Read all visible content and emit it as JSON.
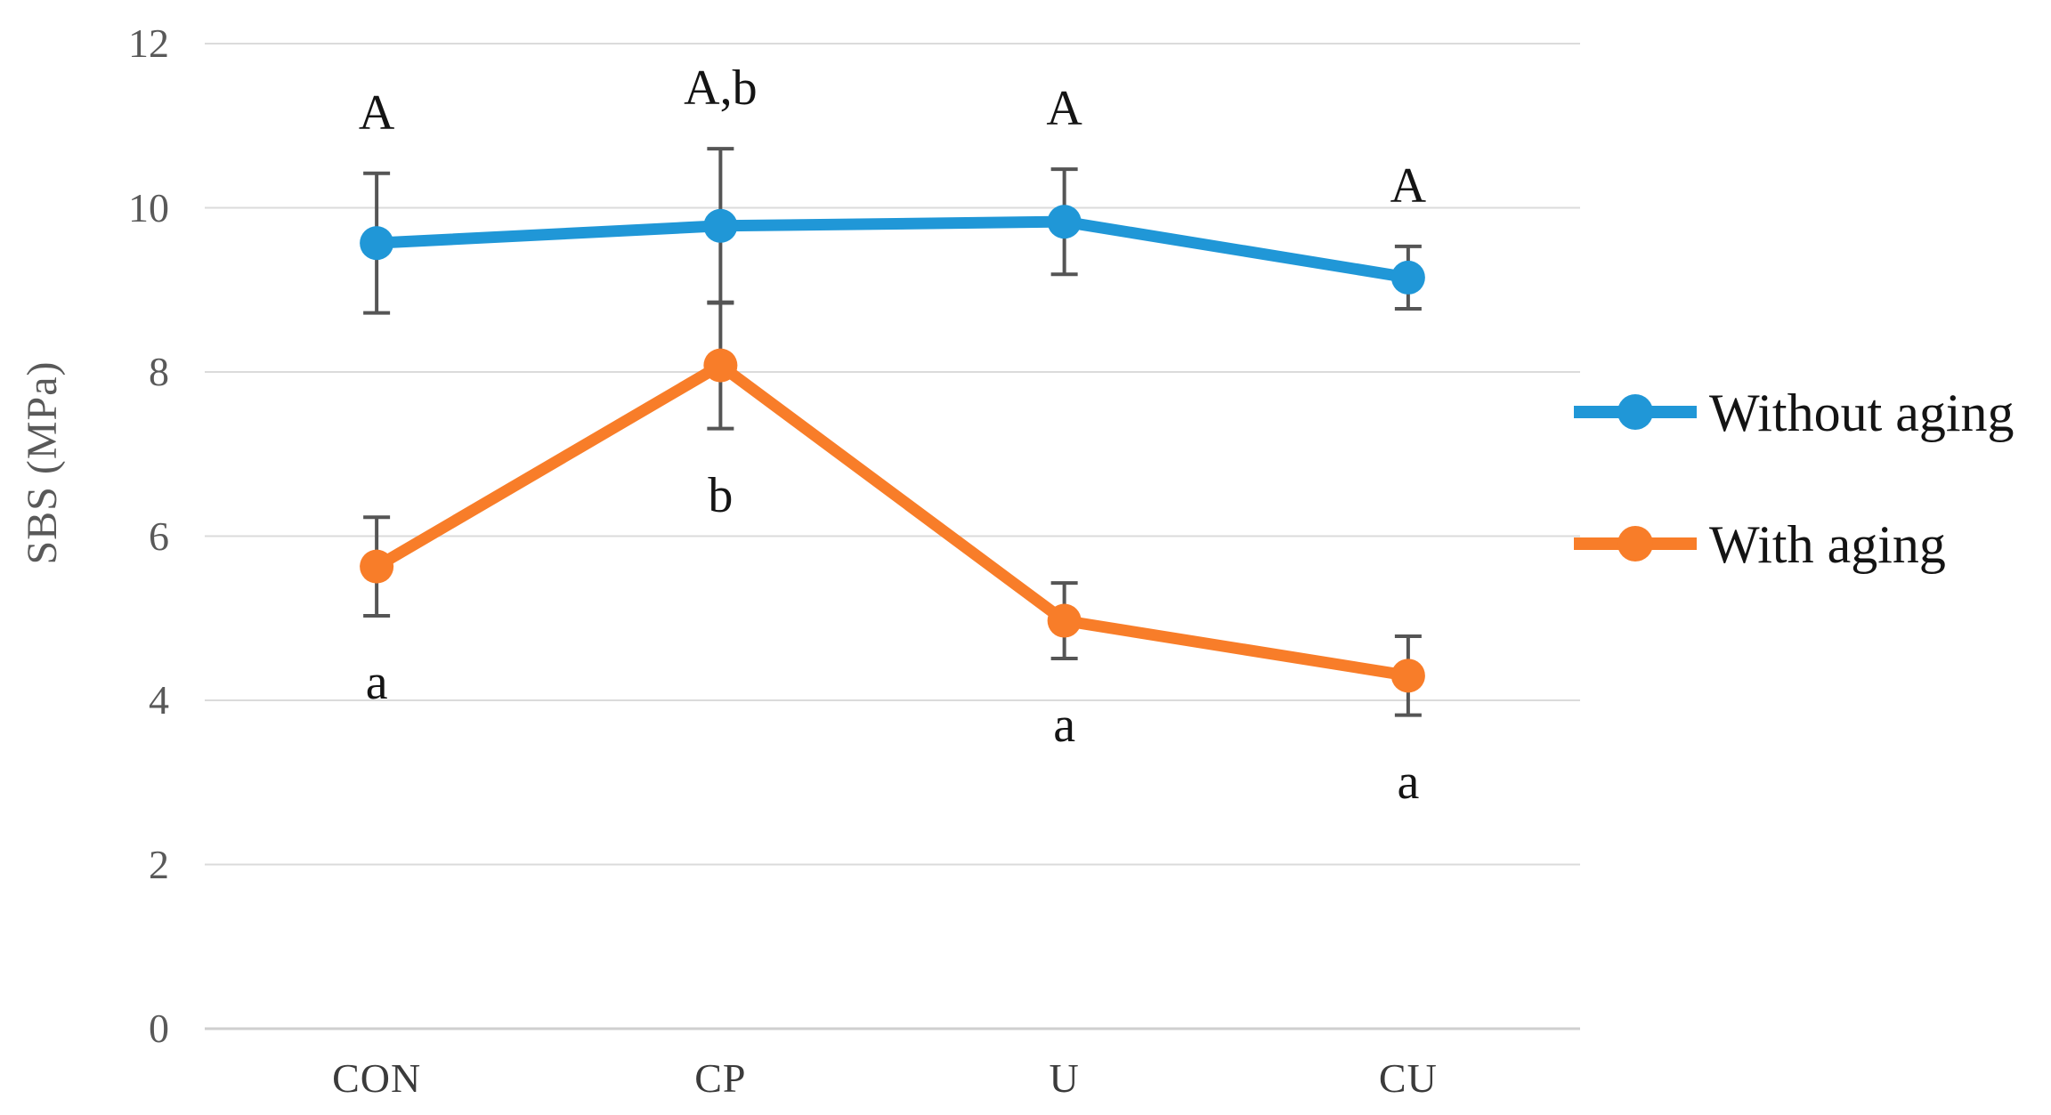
{
  "chart_data": {
    "type": "line",
    "title": "",
    "xlabel": "",
    "ylabel": "SBS (MPa)",
    "categories": [
      "CON",
      "CP",
      "U",
      "CU"
    ],
    "series": [
      {
        "name": "Without aging",
        "color": "#2097D7",
        "values": [
          9.57,
          9.78,
          9.83,
          9.15
        ],
        "error_bars": [
          0.85,
          0.94,
          0.64,
          0.38
        ],
        "point_labels": [
          "A",
          "A,b",
          "A",
          "A"
        ],
        "point_label_position": "above"
      },
      {
        "name": "With aging",
        "color": "#F87D29",
        "values": [
          5.63,
          8.08,
          4.97,
          4.3
        ],
        "error_bars": [
          0.6,
          0.77,
          0.46,
          0.48
        ],
        "point_labels": [
          "a",
          "b",
          "a",
          "a"
        ],
        "point_label_position": "below"
      }
    ],
    "yticks": [
      0,
      2,
      4,
      6,
      8,
      10,
      12
    ],
    "ylim": [
      0,
      12
    ],
    "grid": true,
    "legend_position": "right"
  }
}
